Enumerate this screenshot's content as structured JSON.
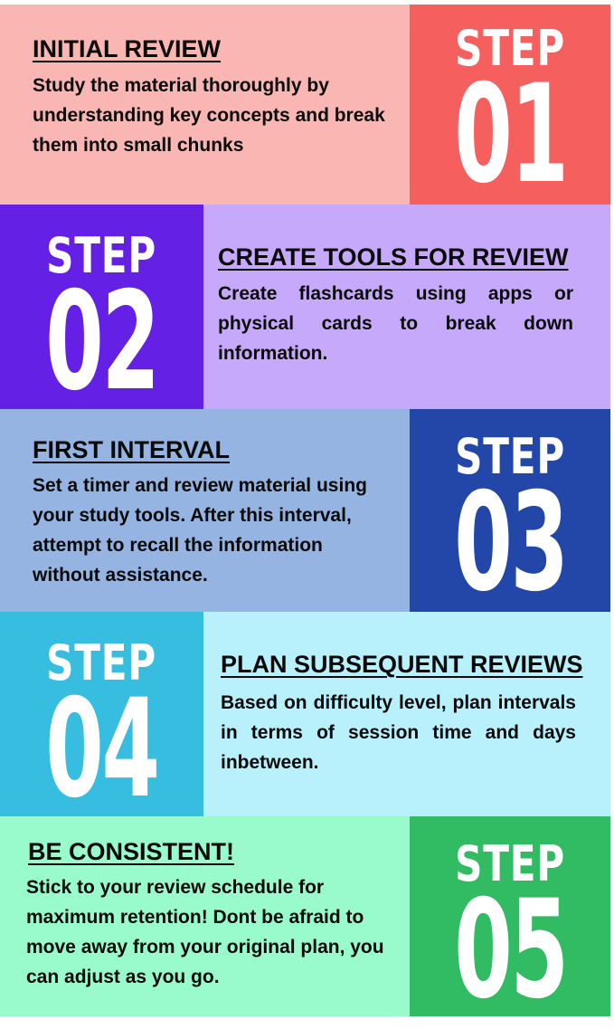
{
  "steps": [
    {
      "step_label": "STEP",
      "number": "01",
      "title": "INITIAL REVIEW",
      "body": "Study the material thoroughly by understanding key concepts and break them into small chunks",
      "text_bg": "#f9b6b3",
      "step_bg": "#f5605f"
    },
    {
      "step_label": "STEP",
      "number": "02",
      "title": "CREATE TOOLS FOR REVIEW",
      "body": "Create flashcards using apps or physical cards to break down information.",
      "text_bg": "#c6a9fb",
      "step_bg": "#6420e4"
    },
    {
      "step_label": "STEP",
      "number": "03",
      "title": "FIRST INTERVAL",
      "body": "Set a timer and review material using your study tools. After this interval, attempt to recall the information without assistance.",
      "text_bg": "#95b4e1",
      "step_bg": "#2247a9"
    },
    {
      "step_label": "STEP",
      "number": "04",
      "title": "PLAN SUBSEQUENT REVIEWS",
      "body": "Based on difficulty level, plan intervals in terms of session time and days inbetween.",
      "text_bg": "#b8f0fc",
      "step_bg": "#37bde0"
    },
    {
      "step_label": "STEP",
      "number": "05",
      "title": "BE CONSISTENT!",
      "body": "Stick to your review schedule for maximum retention! Dont be afraid to move away from your original plan, you can adjust as you go.",
      "text_bg": "#99fbcc",
      "step_bg": "#31bb63"
    }
  ]
}
